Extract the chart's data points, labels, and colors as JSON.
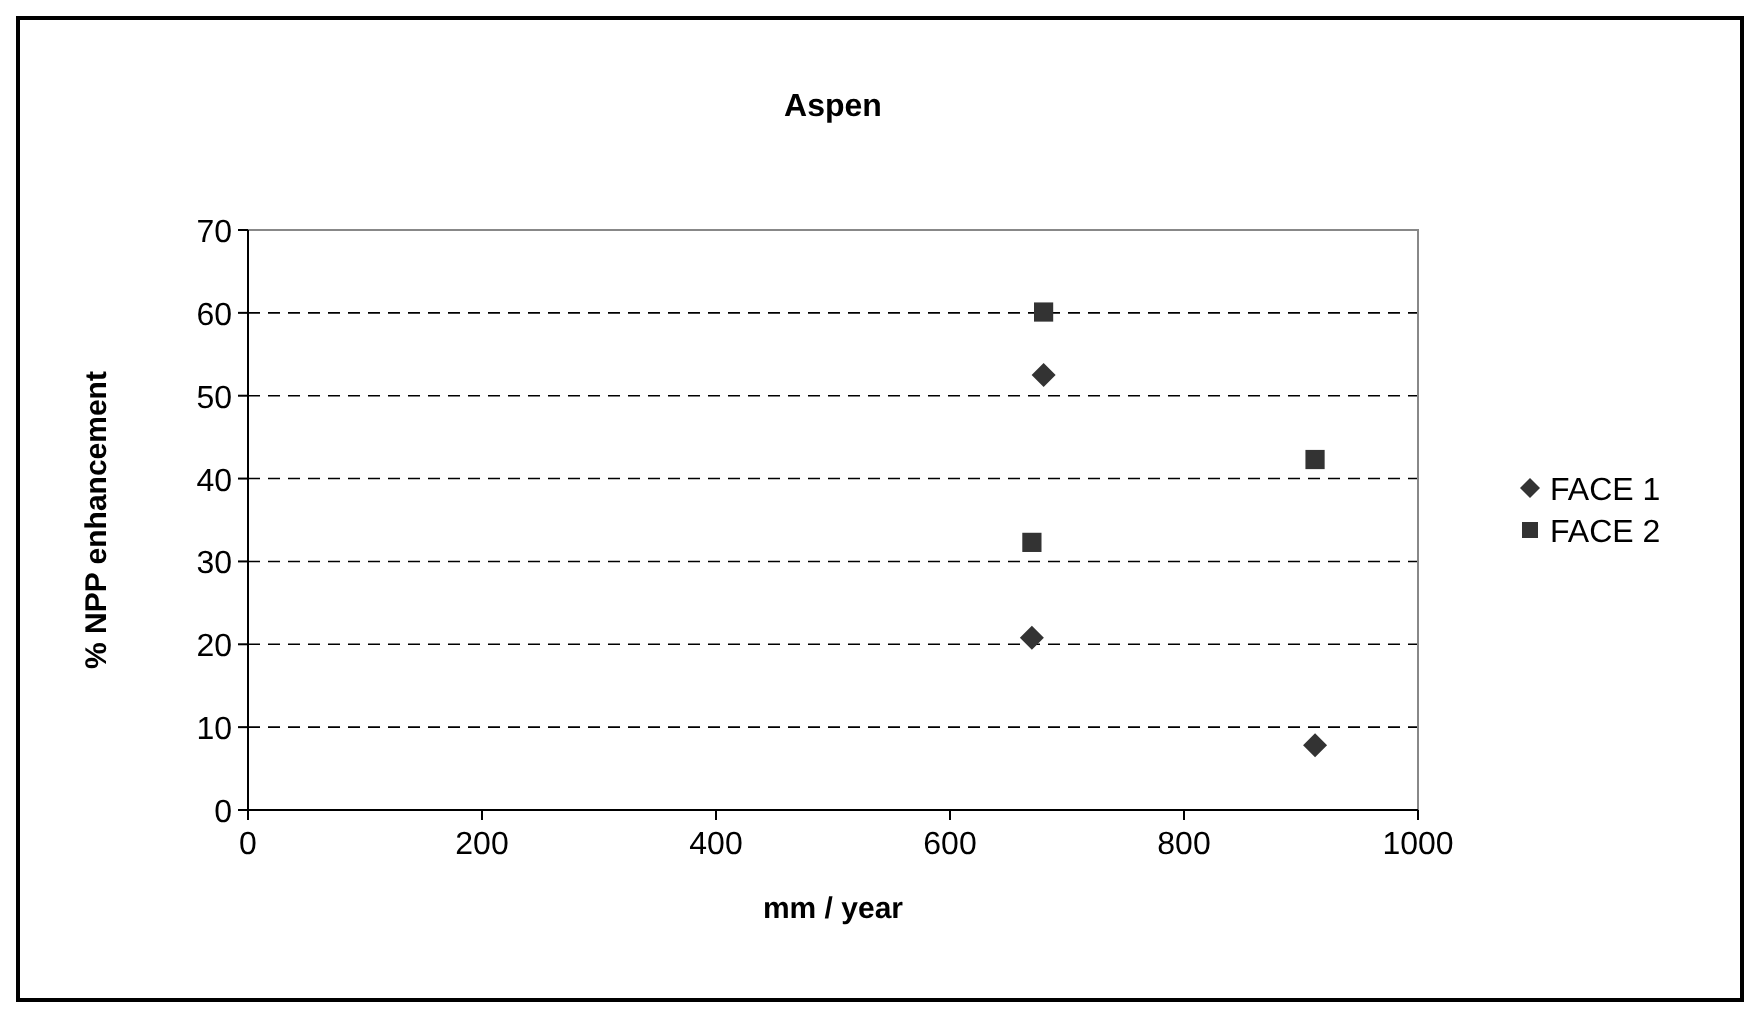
{
  "chart_data": {
    "type": "scatter",
    "title": "Aspen",
    "xlabel": "mm / year",
    "ylabel": "% NPP enhancement",
    "xlim": [
      0,
      1000
    ],
    "xticks": [
      0,
      200,
      400,
      600,
      800,
      1000
    ],
    "ylim": [
      0,
      70
    ],
    "yticks": [
      0,
      10,
      20,
      30,
      40,
      50,
      60,
      70
    ],
    "grid": "y",
    "legend": "right",
    "series": [
      {
        "name": "FACE 1",
        "color": "#333333",
        "marker": "diamond",
        "x": [
          680,
          670,
          912
        ],
        "values": [
          52.5,
          20.8,
          7.8
        ]
      },
      {
        "name": "FACE 2",
        "color": "#333333",
        "marker": "square",
        "x": [
          680,
          670,
          912
        ],
        "values": [
          60.1,
          32.3,
          42.3
        ]
      }
    ]
  }
}
